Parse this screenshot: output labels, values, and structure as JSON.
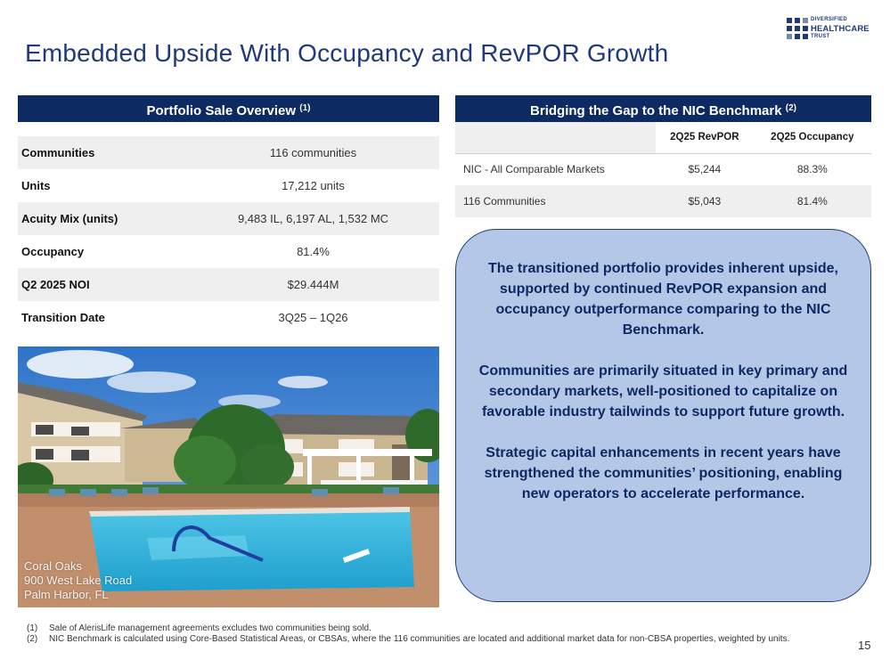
{
  "title": "Embedded Upside With Occupancy and RevPOR Growth",
  "logo": {
    "line1": "DIVERSIFIED",
    "line2": "HEALTHCARE",
    "line3": "TRUST",
    "color": "#1f3a7a"
  },
  "portfolio": {
    "header": "Portfolio Sale Overview",
    "header_note": "(1)",
    "rows": [
      {
        "label": "Communities",
        "value": "116 communities"
      },
      {
        "label": "Units",
        "value": "17,212 units"
      },
      {
        "label": "Acuity Mix (units)",
        "value": "9,483 IL, 6,197 AL, 1,532 MC"
      },
      {
        "label": "Occupancy",
        "value": "81.4%"
      },
      {
        "label": "Q2 2025 NOI",
        "value": "$29.444M"
      },
      {
        "label": "Transition Date",
        "value": "3Q25 – 1Q26"
      }
    ]
  },
  "benchmark": {
    "header": "Bridging the Gap to the NIC Benchmark",
    "header_note": "(2)",
    "columns": [
      "2Q25 RevPOR",
      "2Q25 Occupancy"
    ],
    "rows": [
      {
        "name": "NIC - All Comparable Markets",
        "revpor": "$5,244",
        "occupancy": "88.3%"
      },
      {
        "name": "116 Communities",
        "revpor": "$5,043",
        "occupancy": "81.4%"
      }
    ]
  },
  "photo": {
    "caption_line1": "Coral Oaks",
    "caption_line2": "900 West Lake Road",
    "caption_line3": "Palm Harbor, FL"
  },
  "callout": {
    "p1": "The transitioned portfolio provides inherent upside, supported by continued RevPOR expansion and occupancy outperformance comparing to the NIC Benchmark.",
    "p2": "Communities are primarily situated in key primary and secondary markets, well-positioned to capitalize on favorable industry tailwinds to support future growth.",
    "p3": "Strategic capital enhancements in recent years have strengthened the communities’ positioning, enabling new operators to accelerate performance."
  },
  "footnotes": [
    {
      "num": "(1)",
      "text": "Sale of AlerisLife management agreements excludes two communities being sold."
    },
    {
      "num": "(2)",
      "text": "NIC Benchmark is calculated using Core-Based Statistical Areas, or CBSAs, where the 116 communities are located and additional market data for non-CBSA properties, weighted by units."
    }
  ],
  "page_number": "15",
  "colors": {
    "navy": "#0e2a63",
    "title_blue": "#1f3a7a",
    "callout_fill": "#b4c7e7",
    "row_stripe": "#efefef"
  }
}
